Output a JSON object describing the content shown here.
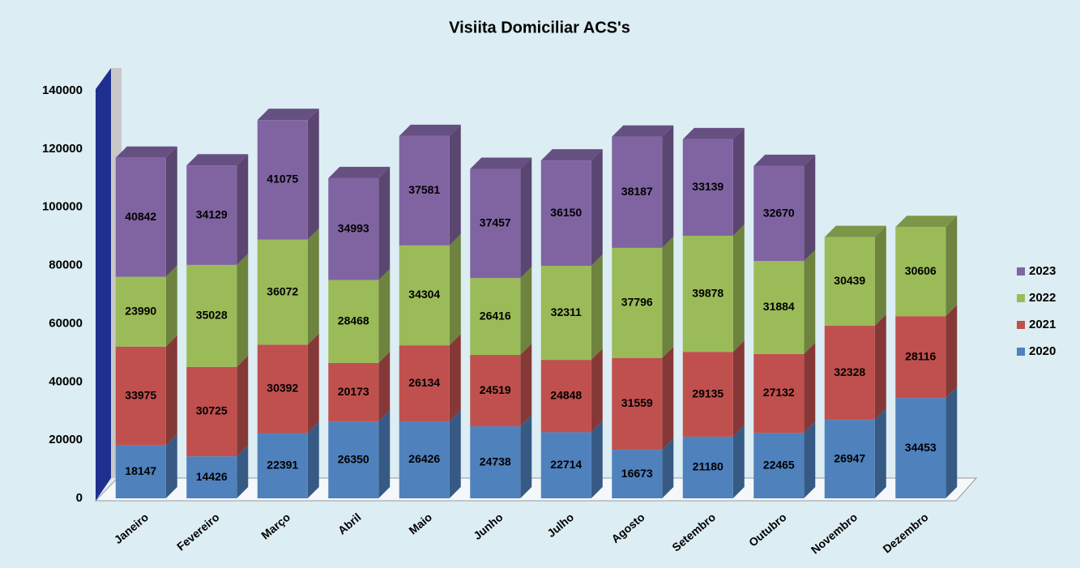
{
  "chart_data": {
    "type": "stacked_bar_3d",
    "title": "Visiita Domiciliar ACS's",
    "categories": [
      "Janeiro",
      "Fevereiro",
      "Março",
      "Abril",
      "Maio",
      "Junho",
      "Julho",
      "Agosto",
      "Setembro",
      "Outubro",
      "Novembro",
      "Dezembro"
    ],
    "series": [
      {
        "name": "2020",
        "color": "#4f81bd",
        "values": [
          18147,
          14426,
          22391,
          26350,
          26426,
          24738,
          22714,
          16673,
          21180,
          22465,
          26947,
          34453
        ]
      },
      {
        "name": "2021",
        "color": "#c0504d",
        "values": [
          33975,
          30725,
          30392,
          20173,
          26134,
          24519,
          24848,
          31559,
          29135,
          27132,
          32328,
          28116
        ]
      },
      {
        "name": "2022",
        "color": "#9bbb59",
        "values": [
          23990,
          35028,
          36072,
          28468,
          34304,
          26416,
          32311,
          37796,
          39878,
          31884,
          30439,
          30606
        ]
      },
      {
        "name": "2023",
        "color": "#8064a2",
        "values": [
          40842,
          34129,
          41075,
          34993,
          37581,
          37457,
          36150,
          38187,
          33139,
          32670,
          null,
          null
        ]
      }
    ],
    "ylim": [
      0,
      140000
    ],
    "yticks": [
      0,
      20000,
      40000,
      60000,
      80000,
      100000,
      120000,
      140000
    ],
    "legend": "right"
  }
}
